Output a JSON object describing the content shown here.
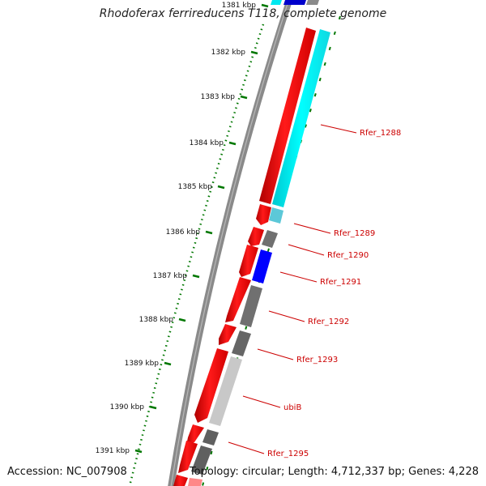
{
  "header": {
    "title": "Rhodoferax ferrireducens T118, complete genome"
  },
  "footer": {
    "accession": "Accession: NC_007908",
    "topology": "Topology: circular; Length: 4,712,337 bp; Genes: 4,228"
  },
  "scale": {
    "ticks": [
      "1381 kbp",
      "1382 kbp",
      "1383 kbp",
      "1384 kbp",
      "1385 kbp",
      "1386 kbp",
      "1387 kbp",
      "1388 kbp",
      "1389 kbp",
      "1390 kbp",
      "1391 kbp"
    ]
  },
  "genes": {
    "labels": [
      "Rfer_1288",
      "Rfer_1289",
      "Rfer_1290",
      "Rfer_1291",
      "Rfer_1292",
      "Rfer_1293",
      "ubiB",
      "Rfer_1295"
    ]
  },
  "colors": {
    "forward_cds": "#ff0000",
    "reverse_cds": "#666666",
    "highlight_cyan": "#00ffff",
    "highlight_blue": "#0000ff",
    "light_gray": "#c8c8c8",
    "backbone": "#808080",
    "scale_ticks": "#007700",
    "label_text": "#cc0000"
  }
}
